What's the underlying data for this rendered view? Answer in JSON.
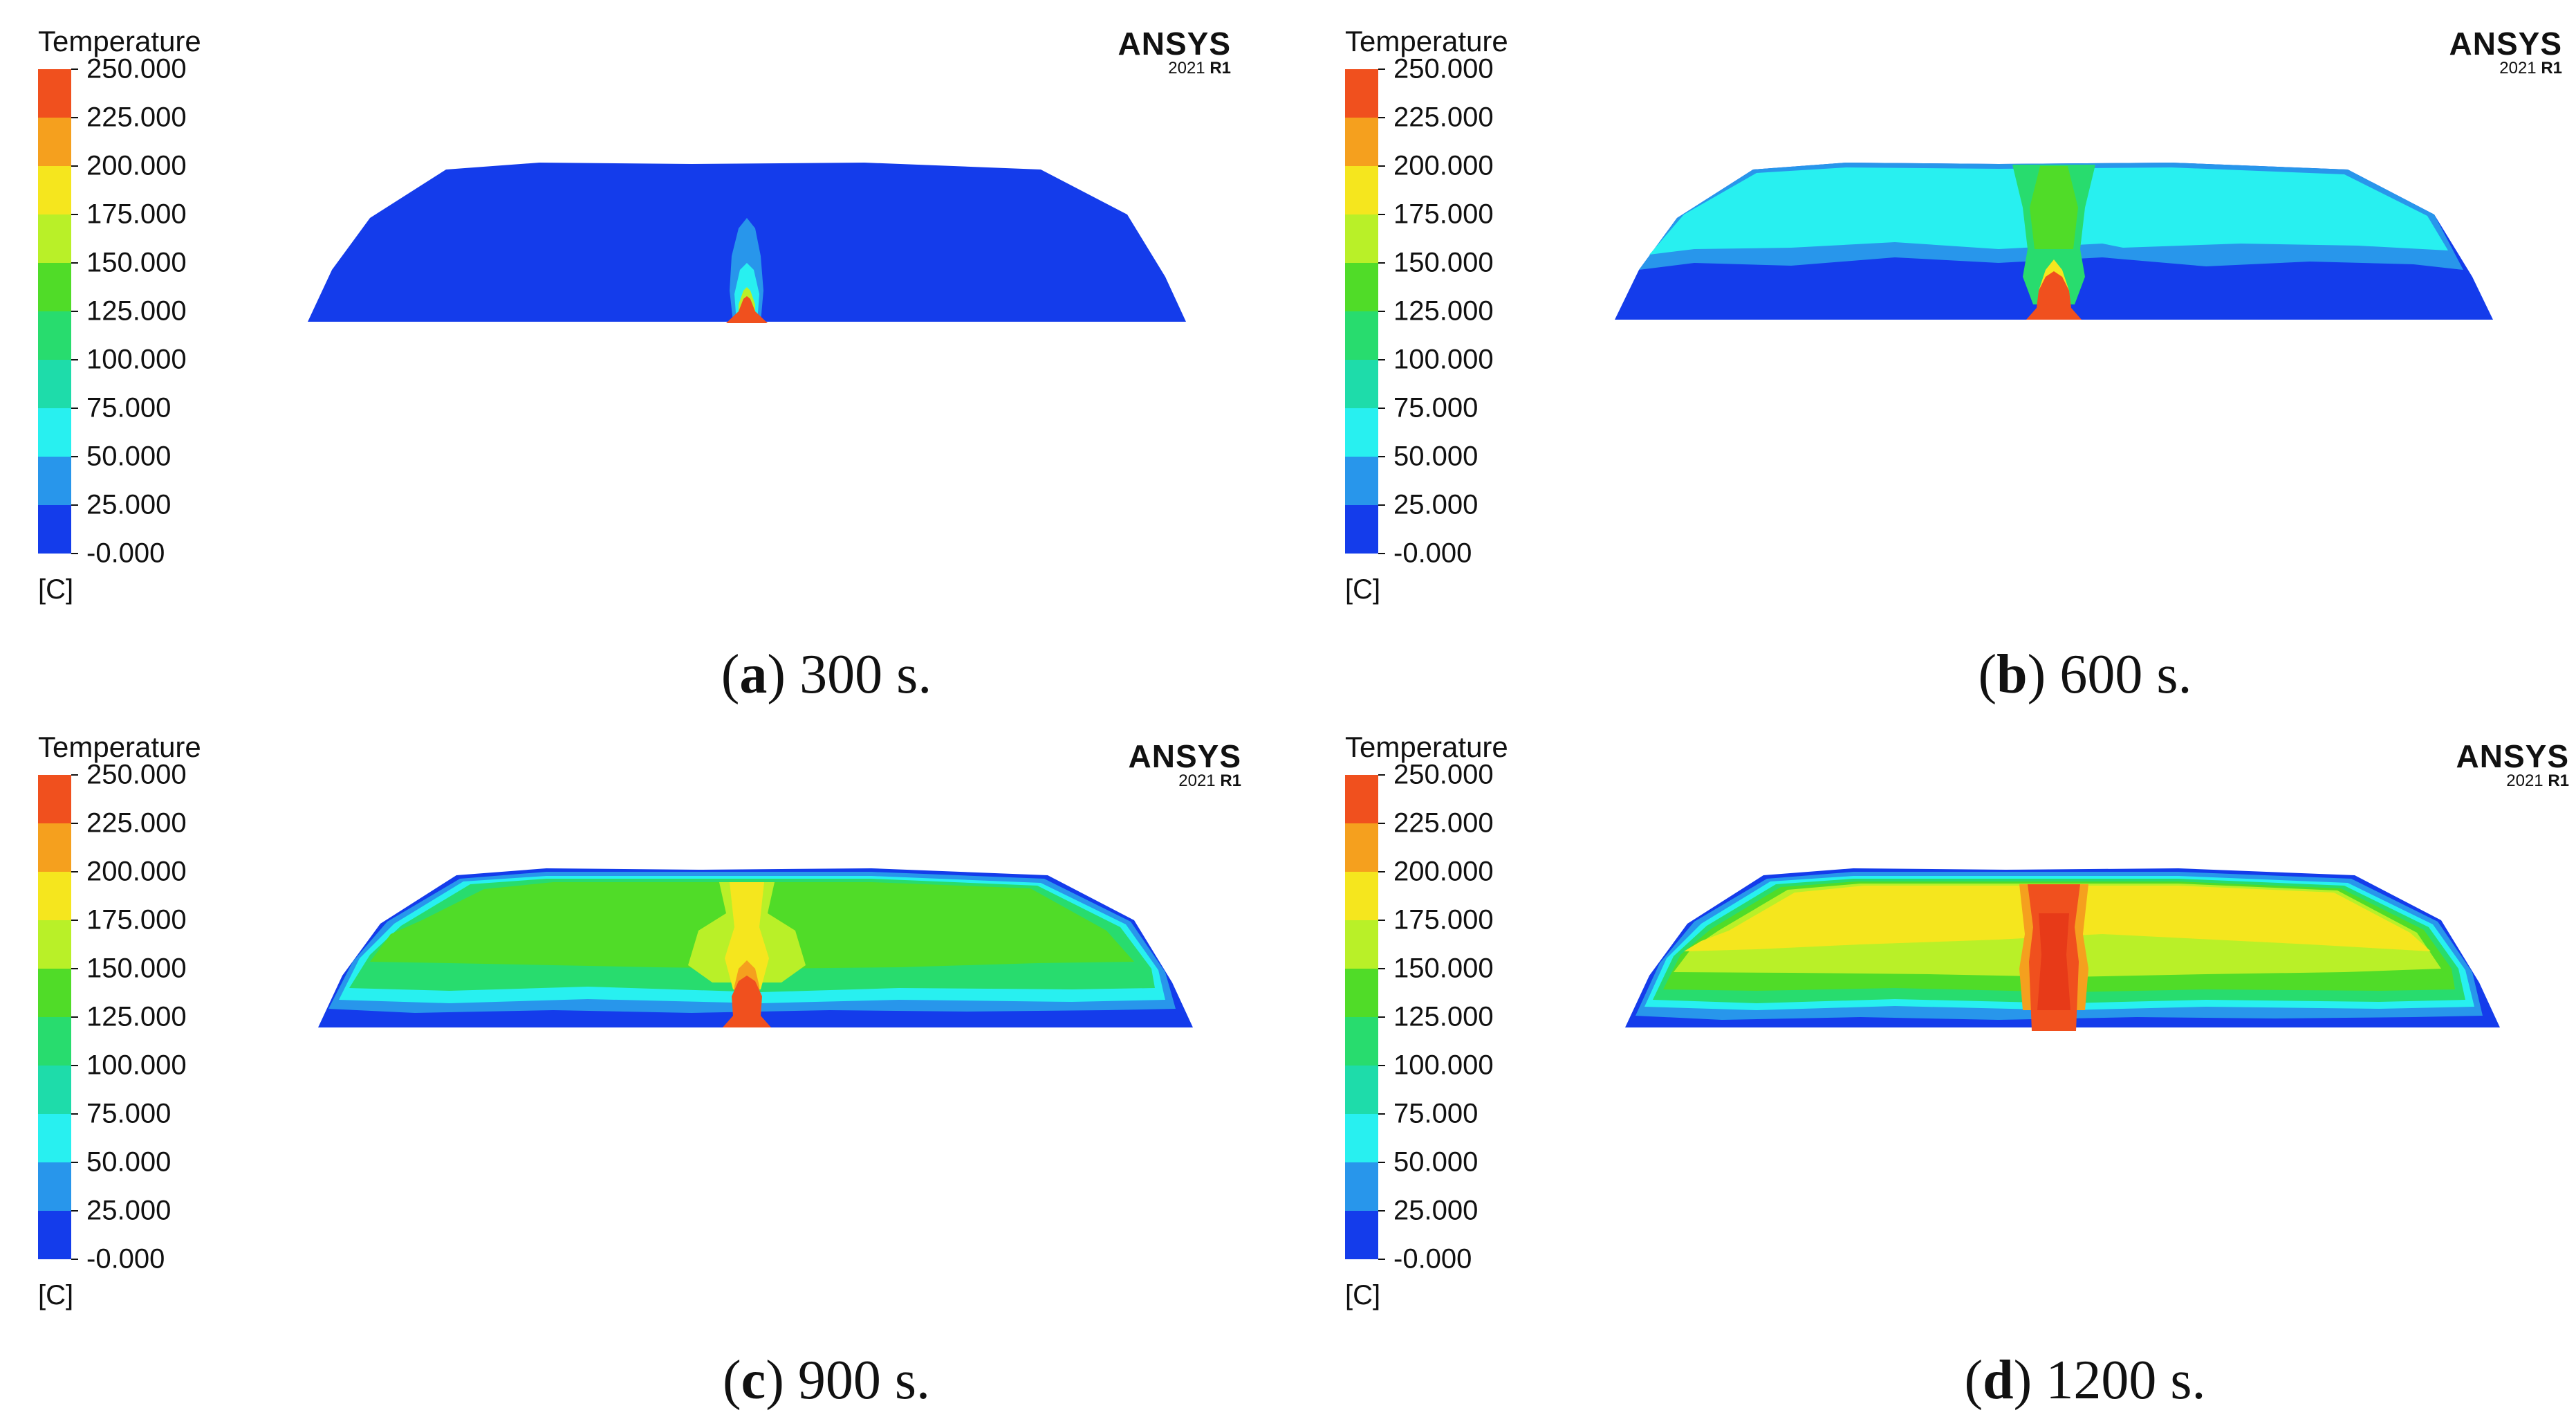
{
  "legend": {
    "title": "Temperature",
    "unit": "[C]",
    "labels": [
      "250.000",
      "225.000",
      "200.000",
      "175.000",
      "150.000",
      "125.000",
      "100.000",
      "75.000",
      "50.000",
      "25.000",
      "-0.000"
    ],
    "colors": [
      "#f0501e",
      "#f5a01e",
      "#f5e61e",
      "#b9f028",
      "#50dc28",
      "#28dc6e",
      "#1edcaa",
      "#28f0f0",
      "#2896eb",
      "#143ceb"
    ]
  },
  "brand": {
    "name": "ANSYS",
    "version_year": "2021",
    "version_release": "R1"
  },
  "panels": [
    {
      "id": "a",
      "letter": "a",
      "time": "300 s."
    },
    {
      "id": "b",
      "letter": "b",
      "time": "600 s."
    },
    {
      "id": "c",
      "letter": "c",
      "time": "900 s."
    },
    {
      "id": "d",
      "letter": "d",
      "time": "1200 s."
    }
  ]
}
